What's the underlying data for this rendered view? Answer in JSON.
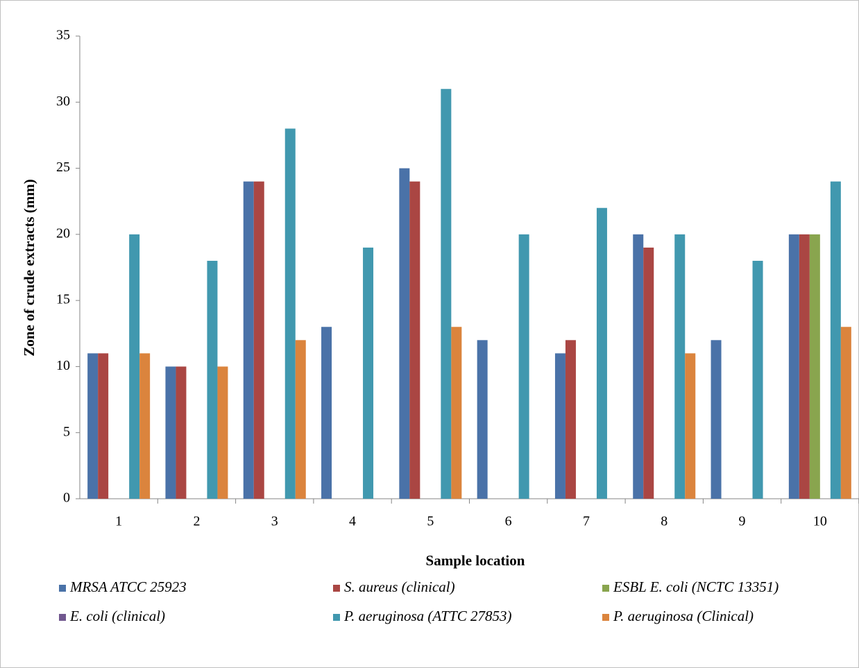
{
  "chart_data": {
    "type": "bar",
    "x_label": "Sample location",
    "y_label": "Zone of crude extracts (mm)",
    "categories": [
      "1",
      "2",
      "3",
      "4",
      "5",
      "6",
      "7",
      "8",
      "9",
      "10"
    ],
    "series": [
      {
        "name": "MRSA ATCC 25923",
        "color": "#4a72a8",
        "values": [
          11,
          10,
          24,
          13,
          25,
          12,
          11,
          20,
          12,
          20
        ]
      },
      {
        "name": "S. aureus (clinical)",
        "color": "#aa4643",
        "values": [
          11,
          10,
          24,
          0,
          24,
          0,
          12,
          19,
          0,
          20
        ]
      },
      {
        "name": "ESBL E. coli (NCTC 13351)",
        "color": "#89a54e",
        "values": [
          0,
          0,
          0,
          0,
          0,
          0,
          0,
          0,
          0,
          20
        ]
      },
      {
        "name": "E. coli (clinical)",
        "color": "#71588f",
        "values": [
          0,
          0,
          0,
          0,
          0,
          0,
          0,
          0,
          0,
          0
        ]
      },
      {
        "name": "P. aeruginosa (ATTC 27853)",
        "color": "#4198af",
        "values": [
          20,
          18,
          28,
          19,
          31,
          20,
          22,
          20,
          18,
          24
        ]
      },
      {
        "name": "P. aeruginosa (Clinical)",
        "color": "#db843d",
        "values": [
          11,
          10,
          12,
          0,
          13,
          0,
          0,
          11,
          0,
          13
        ]
      }
    ],
    "ylim": [
      0,
      35
    ],
    "yticks": [
      0,
      5,
      10,
      15,
      20,
      25,
      30,
      35
    ],
    "grid": false,
    "legend": "bottom"
  }
}
